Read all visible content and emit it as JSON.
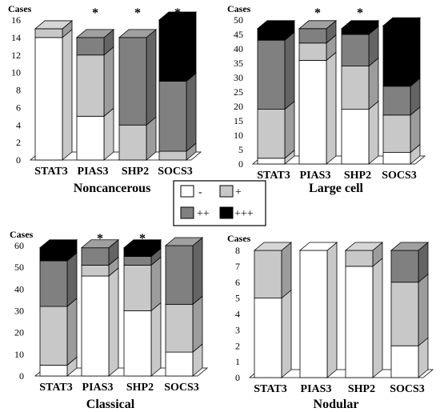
{
  "legend": {
    "items": [
      {
        "label": "-",
        "color": "#ffffff"
      },
      {
        "label": "+",
        "color": "#c8c8c8"
      },
      {
        "label": "++",
        "color": "#808080"
      },
      {
        "label": "+++",
        "color": "#000000"
      }
    ]
  },
  "colors": {
    "neg": "#ffffff",
    "plus": "#c8c8c8",
    "plusplus": "#808080",
    "plusplusplus": "#000000"
  },
  "chart_data": [
    {
      "type": "bar",
      "stacked": true,
      "three_d": true,
      "title": "Noncancerous",
      "ylabel": "Cases",
      "yticks": [
        0,
        2,
        4,
        6,
        8,
        10,
        12,
        14,
        16
      ],
      "ylim": [
        0,
        16
      ],
      "categories": [
        "STAT3",
        "PIAS3",
        "SHP2",
        "SOCS3"
      ],
      "significant": [
        false,
        true,
        true,
        true
      ],
      "series": [
        {
          "name": "-",
          "values": [
            14,
            5,
            0,
            0
          ]
        },
        {
          "name": "+",
          "values": [
            1,
            7,
            4,
            1
          ]
        },
        {
          "name": "++",
          "values": [
            0,
            2,
            10,
            8
          ]
        },
        {
          "name": "+++",
          "values": [
            0,
            0,
            0,
            7
          ]
        }
      ]
    },
    {
      "type": "bar",
      "stacked": true,
      "three_d": true,
      "title": "Large cell",
      "ylabel": "Cases",
      "yticks": [
        0,
        5,
        10,
        15,
        20,
        25,
        30,
        35,
        40,
        45,
        50
      ],
      "ylim": [
        0,
        50
      ],
      "categories": [
        "STAT3",
        "PIAS3",
        "SHP2",
        "SOCS3"
      ],
      "significant": [
        false,
        true,
        true,
        false
      ],
      "series": [
        {
          "name": "-",
          "values": [
            2,
            36,
            19,
            4
          ]
        },
        {
          "name": "+",
          "values": [
            17,
            6,
            15,
            13
          ]
        },
        {
          "name": "++",
          "values": [
            24,
            5,
            11,
            10
          ]
        },
        {
          "name": "+++",
          "values": [
            4,
            0,
            2,
            21
          ]
        }
      ]
    },
    {
      "type": "bar",
      "stacked": true,
      "three_d": true,
      "title": "Classical",
      "ylabel": "Cases",
      "yticks": [
        0,
        10,
        20,
        30,
        40,
        50,
        60
      ],
      "ylim": [
        0,
        60
      ],
      "categories": [
        "STAT3",
        "PIAS3",
        "SHP2",
        "SOCS3"
      ],
      "significant": [
        false,
        true,
        true,
        false
      ],
      "series": [
        {
          "name": "-",
          "values": [
            5,
            46,
            30,
            11
          ]
        },
        {
          "name": "+",
          "values": [
            27,
            5,
            21,
            22
          ]
        },
        {
          "name": "++",
          "values": [
            21,
            8,
            4,
            27
          ]
        },
        {
          "name": "+++",
          "values": [
            6,
            0,
            4,
            0
          ]
        }
      ]
    },
    {
      "type": "bar",
      "stacked": true,
      "three_d": true,
      "title": "Nodular",
      "ylabel": "Cases",
      "yticks": [
        0,
        1,
        2,
        3,
        4,
        5,
        6,
        7,
        8
      ],
      "ylim": [
        0,
        8
      ],
      "categories": [
        "STAT3",
        "PIAS3",
        "SHP2",
        "SOCS3"
      ],
      "significant": [
        false,
        false,
        false,
        false
      ],
      "series": [
        {
          "name": "-",
          "values": [
            5,
            8,
            7,
            2
          ]
        },
        {
          "name": "+",
          "values": [
            3,
            0,
            1,
            4
          ]
        },
        {
          "name": "++",
          "values": [
            0,
            0,
            0,
            2
          ]
        },
        {
          "name": "+++",
          "values": [
            0,
            0,
            0,
            0
          ]
        }
      ]
    }
  ]
}
